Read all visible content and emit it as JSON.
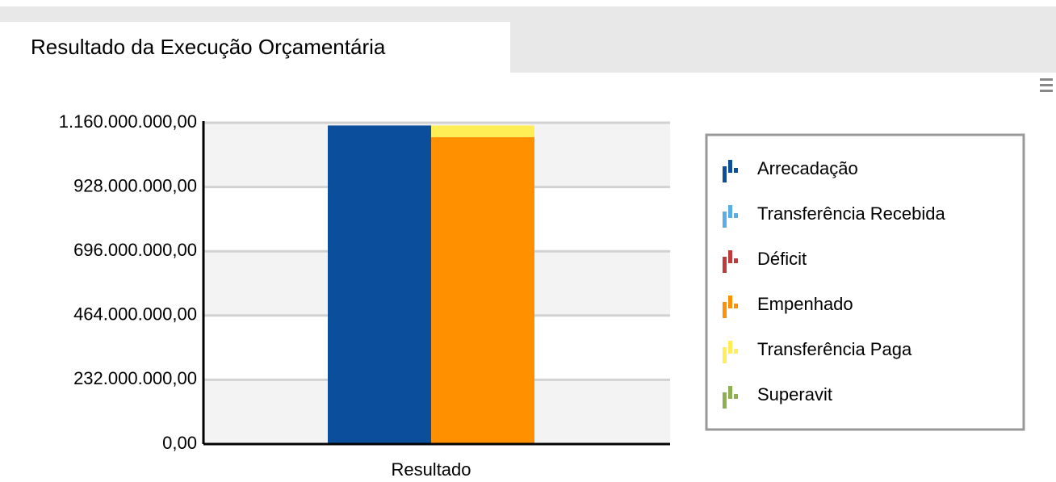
{
  "tab": {
    "title": "Resultado da Execução Orçamentária"
  },
  "chart_data": {
    "type": "stacked-bar",
    "categories": [
      "Resultado"
    ],
    "series": [
      {
        "name": "Arrecadação",
        "color": "#0b4f9c",
        "stack": 0,
        "values": [
          1150000000
        ]
      },
      {
        "name": "Transferência Recebida",
        "color": "#5aaee8",
        "stack": 0,
        "values": [
          0
        ]
      },
      {
        "name": "Déficit",
        "color": "#c0393b",
        "stack": 0,
        "values": [
          0
        ]
      },
      {
        "name": "Empenhado",
        "color": "#ff9000",
        "stack": 1,
        "values": [
          1108000000
        ]
      },
      {
        "name": "Transferência Paga",
        "color": "#ffee55",
        "stack": 1,
        "values": [
          42000000
        ]
      },
      {
        "name": "Superavit",
        "color": "#8fb050",
        "stack": 1,
        "values": [
          0
        ]
      }
    ],
    "ylim": [
      0,
      1160000000
    ],
    "yticks": [
      {
        "value": 0,
        "label": "0,00"
      },
      {
        "value": 232000000,
        "label": "232.000.000,00"
      },
      {
        "value": 464000000,
        "label": "464.000.000,00"
      },
      {
        "value": 696000000,
        "label": "696.000.000,00"
      },
      {
        "value": 928000000,
        "label": "928.000.000,00"
      },
      {
        "value": 1160000000,
        "label": "1.160.000.000,00"
      }
    ],
    "grid": true,
    "legend": "right"
  }
}
